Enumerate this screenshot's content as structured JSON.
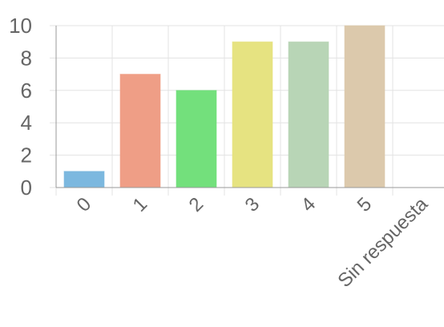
{
  "chart_data": {
    "type": "bar",
    "title": "",
    "xlabel": "",
    "ylabel": "",
    "categories": [
      "0",
      "1",
      "2",
      "3",
      "4",
      "5",
      "Sin respuesta"
    ],
    "values": [
      1,
      7,
      6,
      9,
      9,
      10,
      0
    ],
    "colors": [
      "#7cb8df",
      "#ef9e86",
      "#73e07c",
      "#e6e381",
      "#b8d5b6",
      "#dcc9ac",
      "#cccccc"
    ],
    "ylim": [
      0,
      10
    ],
    "yticks": [
      0,
      2,
      4,
      6,
      8,
      10
    ],
    "grid": true,
    "legend": "none"
  }
}
